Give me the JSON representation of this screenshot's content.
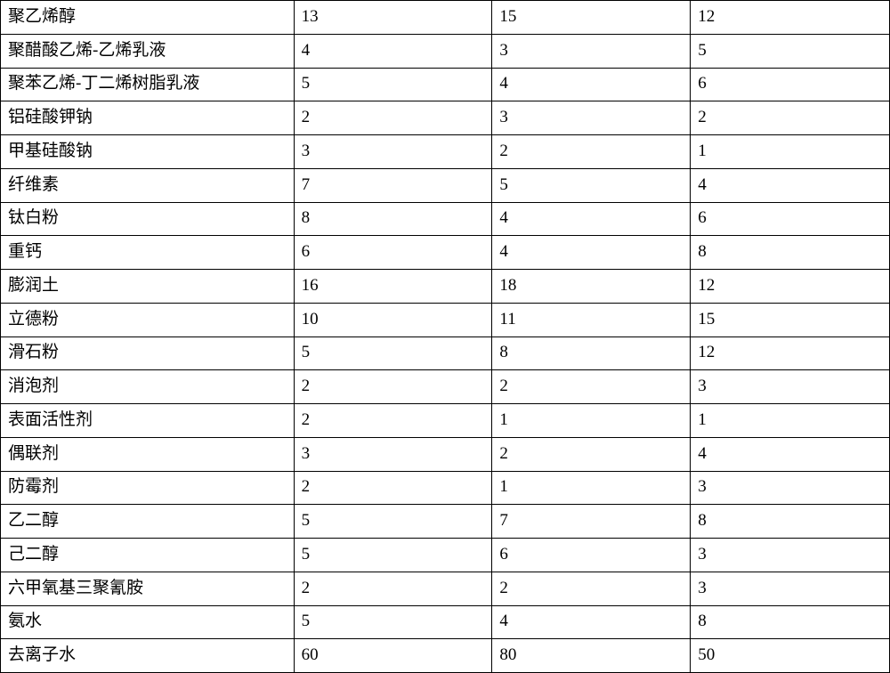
{
  "table": {
    "type": "table",
    "background_color": "#ffffff",
    "border_color": "#000000",
    "border_width": 1.5,
    "font_family": "SimSun",
    "font_size_pt": 14,
    "text_color": "#000000",
    "column_widths_pct": [
      33,
      22.3,
      22.3,
      22.4
    ],
    "alignment": [
      "left",
      "left",
      "left",
      "left"
    ],
    "rows": [
      [
        "聚乙烯醇",
        "13",
        "15",
        "12"
      ],
      [
        "聚醋酸乙烯-乙烯乳液",
        "4",
        "3",
        "5"
      ],
      [
        "聚苯乙烯-丁二烯树脂乳液",
        "5",
        "4",
        "6"
      ],
      [
        "铝硅酸钾钠",
        "2",
        "3",
        "2"
      ],
      [
        "甲基硅酸钠",
        "3",
        "2",
        "1"
      ],
      [
        "纤维素",
        "7",
        "5",
        "4"
      ],
      [
        "钛白粉",
        "8",
        "4",
        "6"
      ],
      [
        "重钙",
        "6",
        "4",
        "8"
      ],
      [
        "膨润土",
        "16",
        "18",
        "12"
      ],
      [
        "立德粉",
        "10",
        "11",
        "15"
      ],
      [
        "滑石粉",
        "5",
        "8",
        "12"
      ],
      [
        "消泡剂",
        "2",
        "2",
        "3"
      ],
      [
        "表面活性剂",
        "2",
        "1",
        "1"
      ],
      [
        "偶联剂",
        "3",
        "2",
        "4"
      ],
      [
        "防霉剂",
        "2",
        "1",
        "3"
      ],
      [
        "乙二醇",
        "5",
        "7",
        "8"
      ],
      [
        "己二醇",
        "5",
        "6",
        "3"
      ],
      [
        "六甲氧基三聚氰胺",
        "2",
        "2",
        "3"
      ],
      [
        "氨水",
        "5",
        "4",
        "8"
      ],
      [
        "去离子水",
        "60",
        "80",
        "50"
      ]
    ]
  }
}
